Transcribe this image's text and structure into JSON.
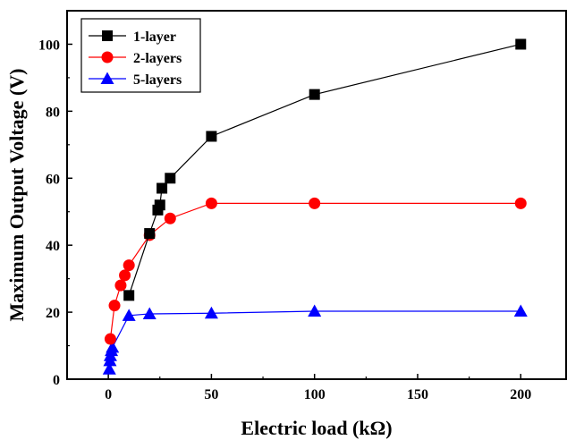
{
  "chart_data": {
    "type": "line",
    "xlabel": "Electric load (kΩ)",
    "ylabel": "Maximum Output Voltage (V)",
    "xlim": [
      -20,
      222
    ],
    "ylim": [
      0,
      110
    ],
    "xticks": [
      0,
      50,
      100,
      150,
      200
    ],
    "yticks": [
      0,
      20,
      40,
      60,
      80,
      100
    ],
    "grid": false,
    "legend_position": "top-left",
    "series": [
      {
        "name": "1-layer",
        "color": "#000000",
        "marker": "square",
        "x": [
          10,
          20,
          24,
          25,
          26,
          30,
          50,
          100,
          200
        ],
        "y": [
          25,
          43.5,
          50.5,
          52,
          57,
          60,
          72.5,
          85,
          100
        ]
      },
      {
        "name": "2-layers",
        "color": "#ff0000",
        "marker": "circle",
        "x": [
          1,
          3,
          6,
          8,
          10,
          20,
          30,
          50,
          100,
          200
        ],
        "y": [
          12,
          22,
          28,
          31,
          34,
          43,
          48,
          52.5,
          52.5,
          52.5
        ]
      },
      {
        "name": "5-layers",
        "color": "#0000ff",
        "marker": "triangle",
        "x": [
          0.5,
          0.8,
          1,
          1.5,
          2,
          10,
          20,
          50,
          100,
          200
        ],
        "y": [
          3,
          5.5,
          7,
          8.5,
          9.5,
          19,
          19.5,
          19.7,
          20.3,
          20.3
        ]
      }
    ]
  }
}
